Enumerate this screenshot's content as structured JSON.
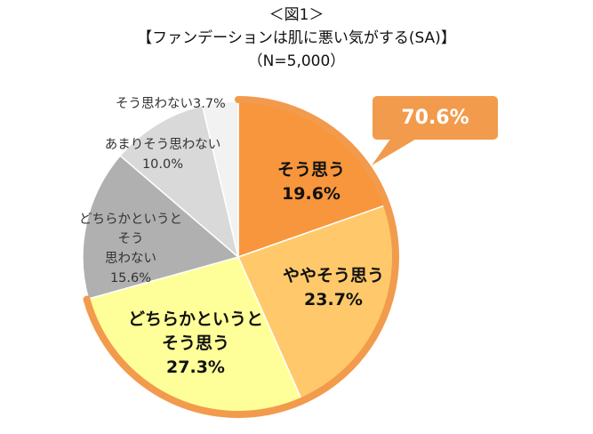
{
  "chart_data": {
    "type": "pie",
    "title": "＜図1＞",
    "subtitle": "【ファンデーションは肌に悪い気がする(SA)】",
    "sample": "（N=5,000）",
    "callout": "70.6%",
    "slices": [
      {
        "label": "そう思う",
        "value": 19.6,
        "display": "19.6%",
        "color": "#F7963C"
      },
      {
        "label": "ややそう思う",
        "value": 23.7,
        "display": "23.7%",
        "color": "#FFC96B"
      },
      {
        "label": "どちらかというとそう思う",
        "value": 27.3,
        "display": "27.3%",
        "color": "#FFFF99"
      },
      {
        "label": "どちらかというとそう思わない",
        "value": 15.6,
        "display": "15.6%",
        "color": "#B0B0B0"
      },
      {
        "label": "あまりそう思わない",
        "value": 10.0,
        "display": "10.0%",
        "color": "#D9D9D9"
      },
      {
        "label": "そう思わない",
        "value": 3.7,
        "display": "3.7%",
        "color": "#F2F2F2"
      }
    ],
    "highlight_color": "#F29B4D"
  }
}
